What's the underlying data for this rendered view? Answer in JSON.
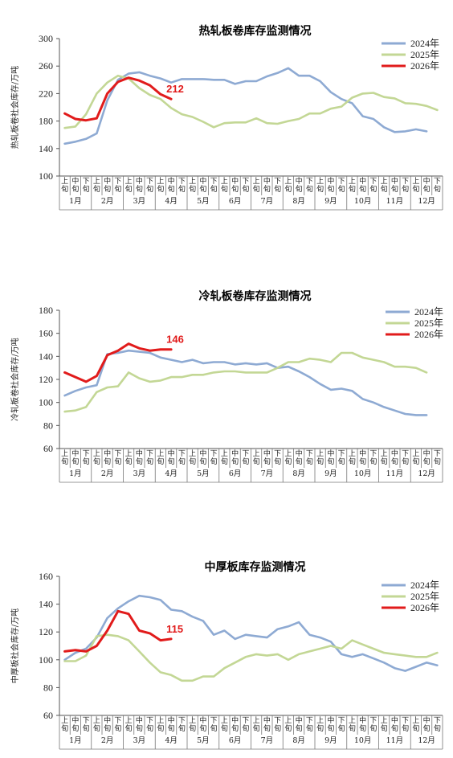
{
  "chart_data": [
    {
      "type": "line",
      "title": "热轧板卷库存监测情况",
      "ylabel": "热轧板卷社会库存/万吨",
      "ylim": [
        100,
        300
      ],
      "yticks": [
        100,
        140,
        180,
        220,
        260,
        300
      ],
      "x_sub_labels": [
        "上旬",
        "中旬",
        "下旬"
      ],
      "months": [
        "1月",
        "2月",
        "3月",
        "4月",
        "5月",
        "6月",
        "7月",
        "8月",
        "9月",
        "10月",
        "11月",
        "12月"
      ],
      "annotation": "212",
      "colors": {
        "2024年": "#8eaad3",
        "2025年": "#c3d795",
        "2026年": "#e11b1b"
      },
      "series": [
        {
          "name": "2024年",
          "values": [
            147,
            150,
            154,
            162,
            210,
            240,
            249,
            251,
            246,
            242,
            236,
            241,
            241,
            241,
            240,
            240,
            234,
            238,
            238,
            245,
            250,
            257,
            246,
            246,
            238,
            222,
            212,
            206,
            187,
            183,
            171,
            164,
            165,
            168,
            165
          ]
        },
        {
          "name": "2025年",
          "values": [
            170,
            172,
            190,
            220,
            236,
            246,
            242,
            228,
            218,
            212,
            199,
            190,
            186,
            179,
            171,
            177,
            178,
            178,
            184,
            177,
            176,
            180,
            183,
            191,
            191,
            198,
            201,
            214,
            220,
            221,
            215,
            213,
            206,
            205,
            202,
            196
          ]
        },
        {
          "name": "2026年",
          "values": [
            191,
            183,
            181,
            184,
            220,
            237,
            243,
            239,
            232,
            219,
            212
          ]
        }
      ]
    },
    {
      "type": "line",
      "title": "冷轧板卷库存监测情况",
      "ylabel": "冷轧板卷社会库存/万吨",
      "ylim": [
        60,
        180
      ],
      "yticks": [
        60,
        80,
        100,
        120,
        140,
        160,
        180
      ],
      "x_sub_labels": [
        "上旬",
        "中旬",
        "下旬"
      ],
      "months": [
        "1月",
        "2月",
        "3月",
        "4月",
        "5月",
        "6月",
        "7月",
        "8月",
        "9月",
        "10月",
        "11月",
        "12月"
      ],
      "annotation": "146",
      "colors": {
        "2024年": "#8eaad3",
        "2025年": "#c3d795",
        "2026年": "#e11b1b"
      },
      "series": [
        {
          "name": "2024年",
          "values": [
            106,
            110,
            113,
            115,
            142,
            143,
            145,
            144,
            143,
            139,
            137,
            135,
            137,
            134,
            135,
            135,
            133,
            134,
            133,
            134,
            130,
            131,
            127,
            122,
            116,
            111,
            112,
            110,
            103,
            100,
            96,
            93,
            90,
            89,
            89
          ]
        },
        {
          "name": "2025年",
          "values": [
            92,
            93,
            96,
            109,
            113,
            114,
            126,
            121,
            118,
            119,
            122,
            122,
            124,
            124,
            126,
            127,
            127,
            126,
            126,
            126,
            130,
            135,
            135,
            138,
            137,
            135,
            143,
            143,
            139,
            137,
            135,
            131,
            131,
            130,
            126
          ]
        },
        {
          "name": "2026年",
          "values": [
            126,
            122,
            118,
            123,
            141,
            145,
            151,
            147,
            145,
            146,
            146
          ]
        }
      ]
    },
    {
      "type": "line",
      "title": "中厚板库存监测情况",
      "ylabel": "中厚板社会库存/万吨",
      "ylim": [
        60,
        160
      ],
      "yticks": [
        60,
        80,
        100,
        120,
        140,
        160
      ],
      "x_sub_labels": [
        "上旬",
        "中旬",
        "下旬"
      ],
      "months": [
        "1月",
        "2月",
        "3月",
        "4月",
        "5月",
        "6月",
        "7月",
        "8月",
        "9月",
        "10月",
        "11月",
        "12月"
      ],
      "annotation": "115",
      "colors": {
        "2024年": "#8eaad3",
        "2025年": "#c3d795",
        "2026年": "#e11b1b"
      },
      "series": [
        {
          "name": "2024年",
          "values": [
            100,
            105,
            108,
            116,
            130,
            137,
            142,
            146,
            145,
            143,
            136,
            135,
            131,
            128,
            118,
            121,
            115,
            118,
            117,
            116,
            122,
            124,
            127,
            118,
            116,
            113,
            104,
            102,
            104,
            101,
            98,
            94,
            92,
            95,
            98,
            96
          ]
        },
        {
          "name": "2025年",
          "values": [
            99,
            99,
            103,
            117,
            118,
            117,
            114,
            106,
            98,
            91,
            89,
            85,
            85,
            88,
            88,
            94,
            98,
            102,
            104,
            103,
            104,
            100,
            104,
            106,
            108,
            110,
            108,
            114,
            111,
            108,
            105,
            104,
            103,
            102,
            102,
            105
          ]
        },
        {
          "name": "2026年",
          "values": [
            106,
            107,
            106,
            110,
            121,
            135,
            133,
            121,
            119,
            114,
            115
          ]
        }
      ]
    }
  ]
}
